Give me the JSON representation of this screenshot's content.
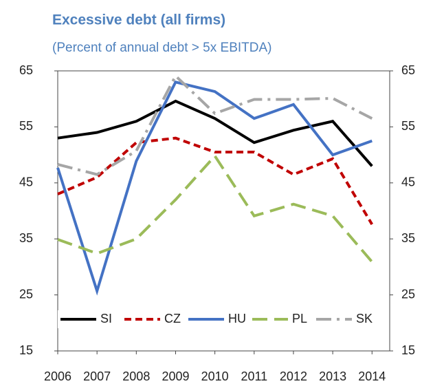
{
  "chart_data": {
    "type": "line",
    "title": "Excessive debt (all firms)",
    "subtitle": "(Percent of annual debt > 5x EBITDA)",
    "x": [
      2006,
      2007,
      2008,
      2009,
      2010,
      2011,
      2012,
      2013,
      2014
    ],
    "xlim": [
      2006,
      2014.45
    ],
    "xticks": [
      2006,
      2007,
      2008,
      2009,
      2010,
      2011,
      2012,
      2013,
      2014
    ],
    "ylim": [
      15,
      65
    ],
    "yticks": [
      15,
      25,
      35,
      45,
      55,
      65
    ],
    "y2lim": [
      15,
      65
    ],
    "y2ticks": [
      15,
      25,
      35,
      45,
      55,
      65
    ],
    "legend": "bottom",
    "series": [
      {
        "name": "SI",
        "color": "#000000",
        "dash": "none",
        "values": [
          53,
          54,
          56,
          59.6,
          56.5,
          52.2,
          54.4,
          56,
          48
        ]
      },
      {
        "name": "CZ",
        "color": "#c00000",
        "dash": "10 6",
        "values": [
          43,
          46,
          52.2,
          53,
          50.5,
          50.5,
          46.5,
          49.3,
          37.6
        ]
      },
      {
        "name": "HU",
        "color": "#4472c4",
        "dash": "none",
        "values": [
          47.7,
          25.7,
          48.9,
          63,
          61.3,
          56.5,
          59,
          50,
          52.5
        ]
      },
      {
        "name": "PL",
        "color": "#9bbb59",
        "dash": "22 10",
        "values": [
          34.9,
          32.4,
          35,
          42,
          49.8,
          39.1,
          41.2,
          39.1,
          30.9
        ]
      },
      {
        "name": "SK",
        "color": "#a6a6a6",
        "dash": "22 8 4 8",
        "values": [
          48.3,
          46.5,
          50.7,
          64.1,
          57.4,
          59.9,
          59.9,
          60.1,
          56.5
        ]
      }
    ]
  }
}
